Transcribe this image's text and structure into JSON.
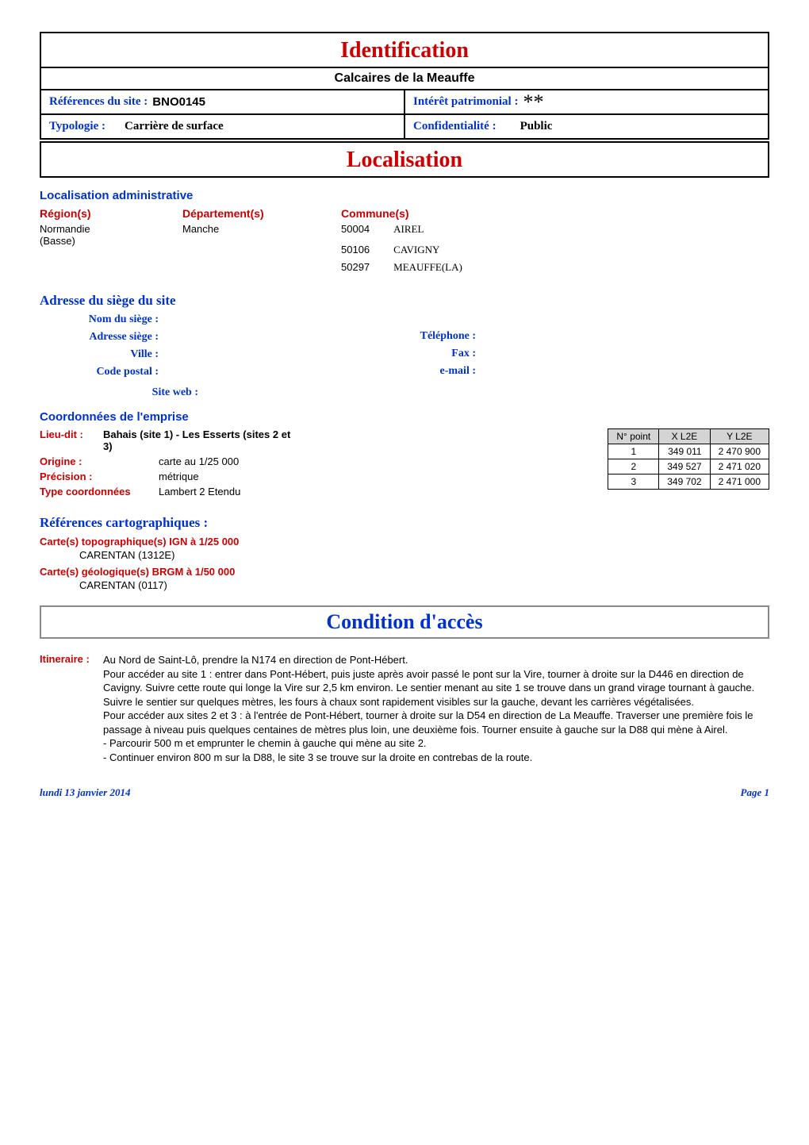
{
  "identification": {
    "title": "Identification",
    "subtitle": "Calcaires de la Meauffe",
    "ref_label": "Références du site :",
    "ref_value": "BNO0145",
    "interet_label": "Intérêt patrimonial :",
    "interet_value": "**",
    "typologie_label": "Typologie :",
    "typologie_value": "Carrière de surface",
    "confid_label": "Confidentialité :",
    "confid_value": "Public"
  },
  "localisation": {
    "title": "Localisation",
    "admin_title": "Localisation administrative",
    "region_head": "Région(s)",
    "dept_head": "Département(s)",
    "commune_head": "Commune(s)",
    "region": "Normandie (Basse)",
    "dept": "Manche",
    "communes": [
      {
        "code": "50004",
        "name": "AIREL"
      },
      {
        "code": "50106",
        "name": "CAVIGNY"
      },
      {
        "code": "50297",
        "name": "MEAUFFE(LA)"
      }
    ],
    "siege_title": "Adresse du siège du site",
    "siege_labels": {
      "nom": "Nom du siège :",
      "adresse": "Adresse siège :",
      "ville": "Ville :",
      "cp": "Code postal :",
      "tel": "Téléphone :",
      "fax": "Fax :",
      "email": "e-mail :",
      "web": "Site web :"
    },
    "emprise_title": "Coordonnées de l'emprise",
    "emprise": {
      "lieudit_label": "Lieu-dit :",
      "lieudit_value": "Bahais (site 1) - Les Esserts (sites 2 et 3)",
      "origine_label": "Origine :",
      "origine_value": "carte au 1/25 000",
      "precision_label": "Précision :",
      "precision_value": "métrique",
      "type_label": "Type coordonnées",
      "type_value": "Lambert 2 Etendu"
    },
    "coord_table": {
      "headers": [
        "N° point",
        "X L2E",
        "Y L2E"
      ],
      "rows": [
        [
          "1",
          "349 011",
          "2 470 900"
        ],
        [
          "2",
          "349 527",
          "2 471 020"
        ],
        [
          "3",
          "349 702",
          "2 471 000"
        ]
      ]
    },
    "carto_title": "Références cartographiques :",
    "topo_label": "Carte(s)  topographique(s) IGN à 1/25 000",
    "topo_value": "CARENTAN  (1312E)",
    "geo_label": "Carte(s) géologique(s) BRGM à 1/50 000",
    "geo_value": "CARENTAN  (0117)"
  },
  "acces": {
    "title": "Condition d'accès",
    "itineraire_label": "Itineraire :",
    "itineraire_text": "Au Nord de Saint-Lô, prendre la N174 en direction de Pont-Hébert.\nPour accéder au site 1 : entrer dans Pont-Hébert, puis juste après avoir passé le pont sur la Vire, tourner à droite sur la D446 en direction de Cavigny. Suivre cette route qui longe la Vire sur 2,5 km environ. Le sentier menant au site 1 se trouve dans un grand virage tournant à gauche. Suivre le sentier sur quelques mètres, les fours à chaux sont rapidement visibles sur la gauche, devant les carrières végétalisées.\nPour accéder aux sites 2 et 3 : à l'entrée de Pont-Hébert, tourner à droite sur la D54 en direction de La Meauffe. Traverser une première fois le passage à niveau puis quelques centaines de mètres plus loin, une deuxième fois. Tourner ensuite à gauche sur la D88 qui mène à Airel.\n- Parcourir 500 m et emprunter le chemin à gauche qui mène au site 2.\n- Continuer environ 800 m sur la D88, le site 3 se trouve sur la droite en contrebas de la route."
  },
  "footer": {
    "date": "lundi 13 janvier 2014",
    "page": "Page 1"
  }
}
